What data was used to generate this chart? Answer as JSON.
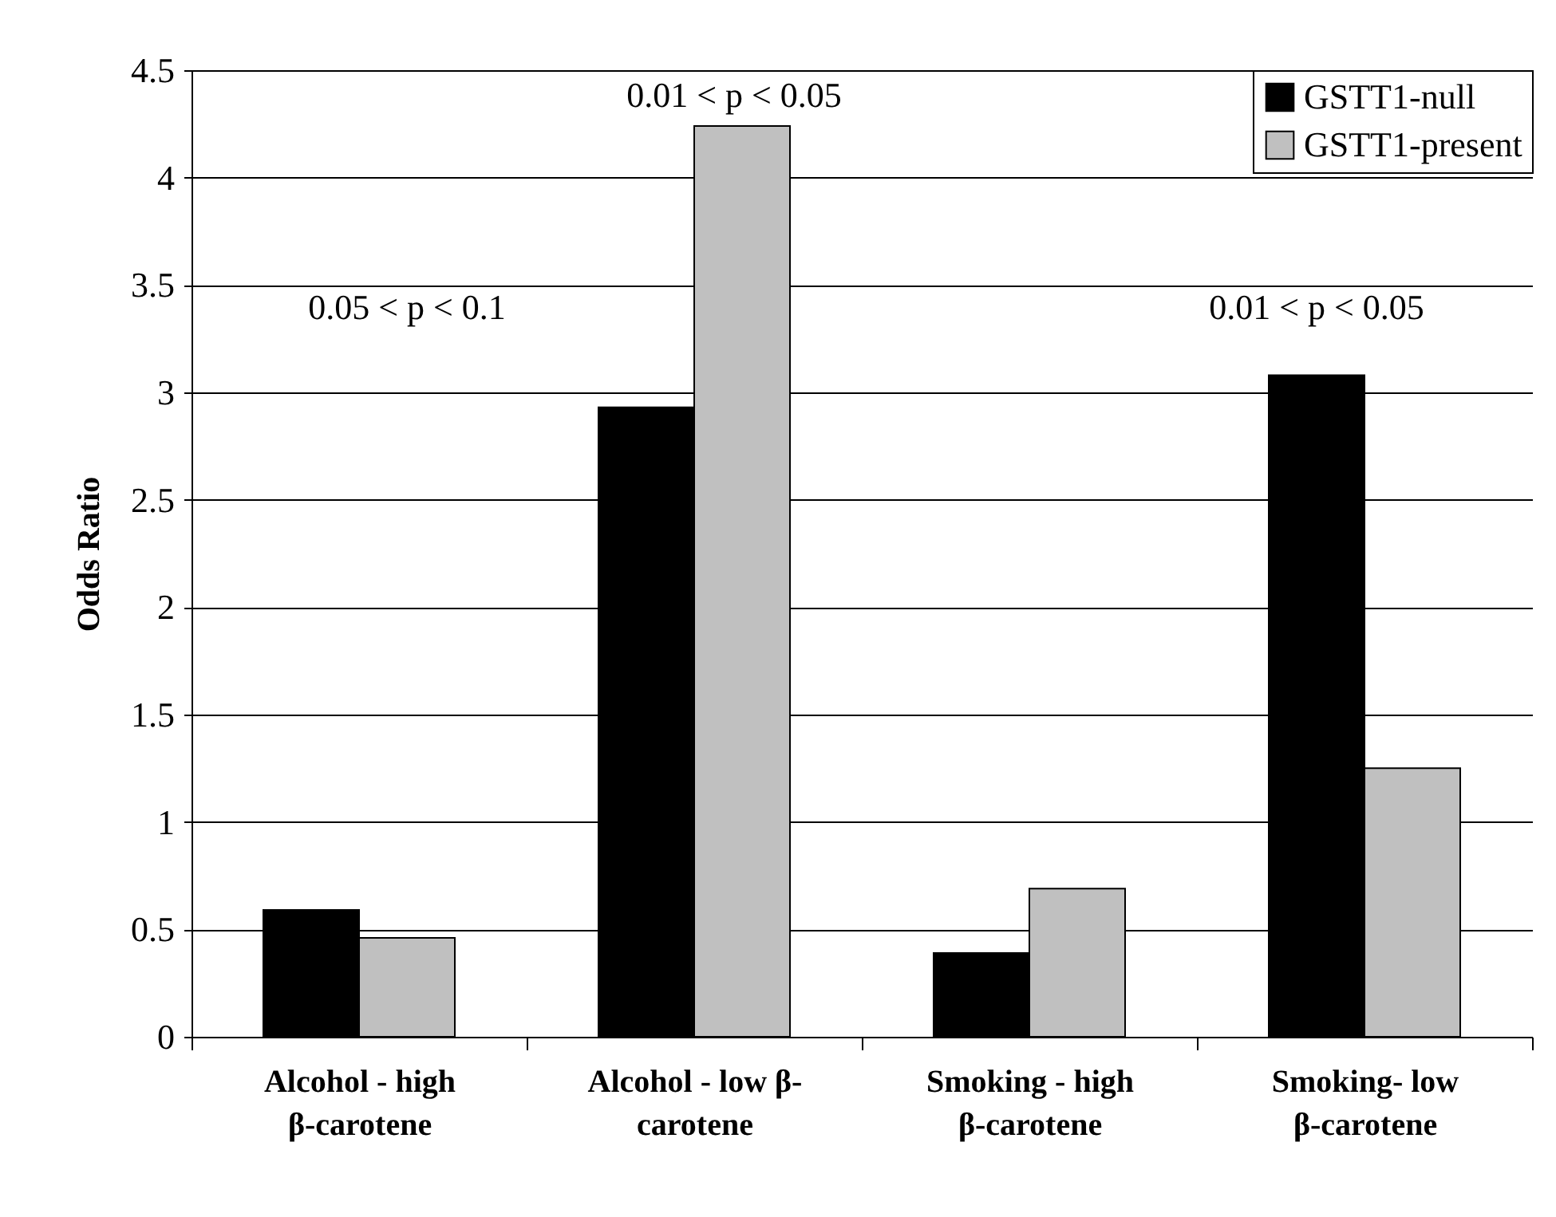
{
  "chart_data": {
    "type": "bar",
    "ylabel": "Odds Ratio",
    "categories": [
      "Alcohol - high\nβ-carotene",
      "Alcohol - low β-\ncarotene",
      "Smoking - high\nβ-carotene",
      "Smoking- low\nβ-carotene"
    ],
    "series": [
      {
        "name": "GSTT1-null",
        "color": "#000000",
        "values": [
          0.59,
          2.93,
          0.39,
          3.08
        ]
      },
      {
        "name": "GSTT1-present",
        "color": "#c0c0c0",
        "values": [
          0.46,
          4.24,
          0.69,
          1.25
        ]
      }
    ],
    "ylim": [
      0,
      4.5
    ],
    "yticks": [
      0,
      0.5,
      1,
      1.5,
      2,
      2.5,
      3,
      3.5,
      4,
      4.5
    ],
    "grid": "y",
    "legend": "top right",
    "annotations": [
      "0.05 < p < 0.1",
      "0.01 < p < 0.05",
      "0.01 < p < 0.05"
    ]
  }
}
